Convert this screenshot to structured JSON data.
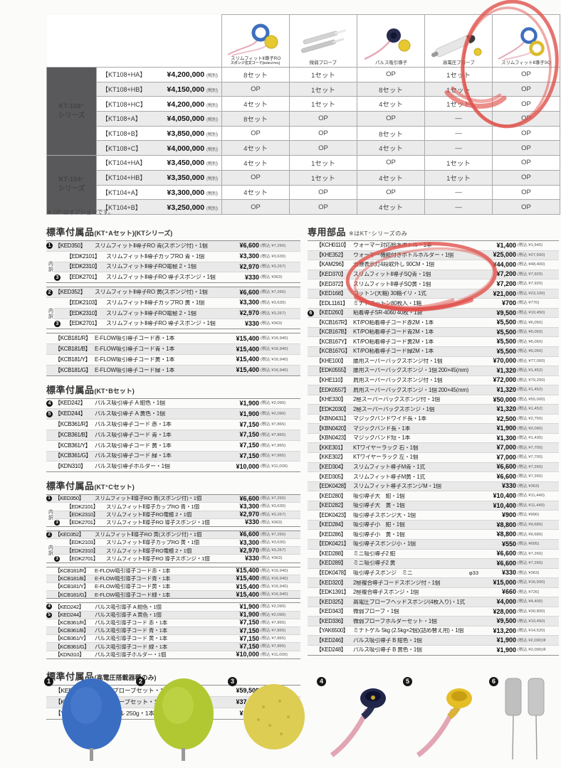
{
  "footnote": "※ OP はオプションです。",
  "top_table": {
    "tax_label": "(税別)",
    "columns": [
      {
        "label": "スリムフィットⅡ導子RO",
        "sublabel": "スポンジ注文コード[EDK2701]",
        "icon": "slimfit-ro-electrode"
      },
      {
        "label": "微弱プローブ",
        "sublabel": "",
        "icon": "weak-current-probe"
      },
      {
        "label": "パルス吸引導子",
        "sublabel": "",
        "icon": "pulse-suction-electrode"
      },
      {
        "label": "高電圧プローブ",
        "sublabel": "",
        "icon": "high-voltage-probe"
      },
      {
        "label": "スリムフィットⅡ導子SQ",
        "sublabel": "",
        "icon": "slimfit-sq-electrode"
      }
    ],
    "groups": [
      {
        "series": "KT-108⁺",
        "series_sub": "シリーズ",
        "rows": [
          {
            "model": "【KT108+HA】",
            "price": "¥4,200,000",
            "opts": [
              "8セット",
              "1セット",
              "OP",
              "1セット",
              "OP"
            ]
          },
          {
            "model": "【KT108+HB】",
            "price": "¥4,150,000",
            "opts": [
              "OP",
              "1セット",
              "8セット",
              "1セット",
              "OP"
            ]
          },
          {
            "model": "【KT108+HC】",
            "price": "¥4,200,000",
            "opts": [
              "4セット",
              "1セット",
              "4セット",
              "1セット",
              "OP"
            ]
          },
          {
            "model": "【KT108+A】",
            "price": "¥4,050,000",
            "opts": [
              "8セット",
              "OP",
              "OP",
              "—",
              "OP"
            ]
          },
          {
            "model": "【KT108+B】",
            "price": "¥3,850,000",
            "opts": [
              "OP",
              "OP",
              "8セット",
              "—",
              "OP"
            ]
          },
          {
            "model": "【KT108+C】",
            "price": "¥4,000,000",
            "opts": [
              "4セット",
              "OP",
              "4セット",
              "—",
              "OP"
            ]
          }
        ]
      },
      {
        "series": "KT-104⁺",
        "series_sub": "シリーズ",
        "rows": [
          {
            "model": "【KT104+HA】",
            "price": "¥3,450,000",
            "opts": [
              "4セット",
              "1セット",
              "OP",
              "1セット",
              "OP"
            ]
          },
          {
            "model": "【KT104+HB】",
            "price": "¥3,350,000",
            "opts": [
              "OP",
              "1セット",
              "4セット",
              "1セット",
              "OP"
            ]
          },
          {
            "model": "【KT104+A】",
            "price": "¥3,300,000",
            "opts": [
              "4セット",
              "OP",
              "OP",
              "—",
              "OP"
            ]
          },
          {
            "model": "【KT104+B】",
            "price": "¥3,250,000",
            "opts": [
              "OP",
              "OP",
              "4セット",
              "—",
              "OP"
            ]
          }
        ]
      }
    ]
  },
  "left_sections": [
    {
      "id": "kta",
      "density": "mid",
      "title": "標準付属品",
      "title_sub": "(KT⁺Aセット)(KTシリーズ)",
      "blocks": [
        {
          "main": {
            "badge": "1",
            "code": "【KED350】",
            "desc": "スリムフィットⅡ導子RO 青(スポンジ付)・1個",
            "price": "¥6,600",
            "tax": "(税込 ¥7,260)"
          },
          "sub_label": "内訳",
          "sub_rows": [
            {
              "code": "【EDK2101】",
              "desc": "スリムフィットⅡ導子カップRO 青・1個",
              "price": "¥3,300",
              "tax": "(税込 ¥3,630)"
            },
            {
              "code": "【EDK2310】",
              "desc": "スリムフィットⅡ導子RO電極 2・1個",
              "price": "¥2,970",
              "tax": "(税込 ¥3,267)"
            },
            {
              "badge": "3",
              "code": "【EDK2701】",
              "desc": "スリムフィットⅡ導子RO 導子スポンジ・1個",
              "price": "¥330",
              "tax": "(税込 ¥363)"
            }
          ]
        },
        {
          "main": {
            "badge": "2",
            "code": "【KED352】",
            "desc": "スリムフィットⅡ導子RO 黄(スポンジ付)・1個",
            "price": "¥6,600",
            "tax": "(税込 ¥7,260)"
          },
          "sub_label": "内訳",
          "sub_rows": [
            {
              "code": "【EDK2103】",
              "desc": "スリムフィットⅡ導子カップRO 黄・1個",
              "price": "¥3,300",
              "tax": "(税込 ¥3,630)"
            },
            {
              "code": "【EDK2310】",
              "desc": "スリムフィットⅡ導子RO電極 2・1個",
              "price": "¥2,970",
              "tax": "(税込 ¥3,267)"
            },
            {
              "badge": "3",
              "code": "【EDK2701】",
              "desc": "スリムフィットⅡ導子RO 導子スポンジ・1個",
              "price": "¥330",
              "tax": "(税込 ¥363)"
            }
          ]
        },
        {
          "rows": [
            {
              "code": "【KCB181/R】",
              "desc": "E-FLOW吸引導子コード赤・1本",
              "price": "¥15,400",
              "tax": "(税込 ¥16,940)"
            },
            {
              "code": "【KCB181/B】",
              "desc": "E-FLOW吸引導子コード青・1本",
              "price": "¥15,400",
              "tax": "(税込 ¥16,940)"
            },
            {
              "code": "【KCB181/Y】",
              "desc": "E-FLOW吸引導子コード黄・1本",
              "price": "¥15,400",
              "tax": "(税込 ¥16,940)"
            },
            {
              "code": "【KCB181/G】",
              "desc": "E-FLOW吸引導子コード緑・1本",
              "price": "¥15,400",
              "tax": "(税込 ¥16,940)"
            }
          ]
        }
      ]
    },
    {
      "id": "ktb",
      "density": "mid",
      "title": "標準付属品",
      "title_sub": "(KT⁺Bセット)",
      "blocks": [
        {
          "rows": [
            {
              "badge": "4",
              "code": "【KED242】",
              "desc": "パルス吸引導子 A 紺色・1個",
              "price": "¥1,900",
              "tax": "(税込 ¥2,090)"
            },
            {
              "badge": "5",
              "code": "【KED244】",
              "desc": "パルス吸引導子 A 黄色・1個",
              "price": "¥1,900",
              "tax": "(税込 ¥2,090)"
            },
            {
              "code": "【KCB361/R】",
              "desc": "パルス吸引導子コード 赤・1本",
              "price": "¥7,150",
              "tax": "(税込 ¥7,865)"
            },
            {
              "code": "【KCB361/B】",
              "desc": "パルス吸引導子コード 青・1本",
              "price": "¥7,150",
              "tax": "(税込 ¥7,865)"
            },
            {
              "code": "【KCB361/Y】",
              "desc": "パルス吸引導子コード 黄・1本",
              "price": "¥7,150",
              "tax": "(税込 ¥7,865)"
            },
            {
              "code": "【KCB361/G】",
              "desc": "パルス吸引導子コード 緑・1本",
              "price": "¥7,150",
              "tax": "(税込 ¥7,865)"
            },
            {
              "code": "【KDN310】",
              "desc": "パルス吸引導子ホルダー・1個",
              "price": "¥10,000",
              "tax": "(税込 ¥11,000)"
            }
          ]
        }
      ]
    },
    {
      "id": "ktc",
      "density": "dense",
      "title": "標準付属品",
      "title_sub": "(KT⁺Cセット)",
      "blocks": [
        {
          "main": {
            "badge": "1",
            "code": "【KED350】",
            "desc": "スリムフィットⅡ導子RO 青(スポンジ付)・1個",
            "price": "¥6,600",
            "tax": "(税込 ¥7,260)"
          },
          "sub_label": "内訳",
          "sub_rows": [
            {
              "code": "【EDK2101】",
              "desc": "スリムフィットⅡ導子カップRO 青・1個",
              "price": "¥3,300",
              "tax": "(税込 ¥3,630)"
            },
            {
              "code": "【EDK2310】",
              "desc": "スリムフィットⅡ導子RO電極 2・1個",
              "price": "¥2,970",
              "tax": "(税込 ¥3,267)"
            },
            {
              "badge": "3",
              "code": "【EDK2701】",
              "desc": "スリムフィットⅡ導子RO 導子スポンジ・1個",
              "price": "¥330",
              "tax": "(税込 ¥363)"
            }
          ]
        },
        {
          "main": {
            "badge": "2",
            "code": "【KED352】",
            "desc": "スリムフィットⅡ導子RO 黄(スポンジ付)・1個",
            "price": "¥6,600",
            "tax": "(税込 ¥7,260)"
          },
          "sub_label": "内訳",
          "sub_rows": [
            {
              "code": "【EDK2103】",
              "desc": "スリムフィットⅡ導子カップRO 黄・1個",
              "price": "¥3,300",
              "tax": "(税込 ¥3,630)"
            },
            {
              "code": "【EDK2310】",
              "desc": "スリムフィットⅡ導子RO電極 2・1個",
              "price": "¥2,970",
              "tax": "(税込 ¥3,267)"
            },
            {
              "badge": "3",
              "code": "【EDK2701】",
              "desc": "スリムフィットⅡ導子RO 導子スポンジ・1個",
              "price": "¥330",
              "tax": "(税込 ¥363)"
            }
          ]
        },
        {
          "rows": [
            {
              "code": "【KCB181/R】",
              "desc": "E-FLOW吸引導子コード赤・1本",
              "price": "¥15,400",
              "tax": "(税込 ¥16,940)"
            },
            {
              "code": "【KCB181/B】",
              "desc": "E-FLOW吸引導子コード青・1本",
              "price": "¥15,400",
              "tax": "(税込 ¥16,940)"
            },
            {
              "code": "【KCB181/Y】",
              "desc": "E-FLOW吸引導子コード黄・1本",
              "price": "¥15,400",
              "tax": "(税込 ¥16,940)"
            },
            {
              "code": "【KCB181/G】",
              "desc": "E-FLOW吸引導子コード緑・1本",
              "price": "¥15,400",
              "tax": "(税込 ¥16,940)"
            }
          ]
        },
        {
          "rows": [
            {
              "badge": "4",
              "code": "【KED242】",
              "desc": "パルス吸引導子 A 紺色・1個",
              "price": "¥1,900",
              "tax": "(税込 ¥2,090)"
            },
            {
              "badge": "5",
              "code": "【KED244】",
              "desc": "パルス吸引導子 A 黄色・1個",
              "price": "¥1,900",
              "tax": "(税込 ¥2,090)"
            },
            {
              "code": "【KCB361/R】",
              "desc": "パルス吸引導子コード 赤・1本",
              "price": "¥7,150",
              "tax": "(税込 ¥7,865)"
            },
            {
              "code": "【KCB361/B】",
              "desc": "パルス吸引導子コード 青・1本",
              "price": "¥7,150",
              "tax": "(税込 ¥7,865)"
            },
            {
              "code": "【KCB361/Y】",
              "desc": "パルス吸引導子コード 黄・1本",
              "price": "¥7,150",
              "tax": "(税込 ¥7,865)"
            },
            {
              "code": "【KCB361/G】",
              "desc": "パルス吸引導子コード 緑・1本",
              "price": "¥7,150",
              "tax": "(税込 ¥7,865)"
            },
            {
              "code": "【KDN310】",
              "desc": "パルス吸引導子ホルダー・1個",
              "price": "¥10,000",
              "tax": "(税込 ¥11,000)"
            }
          ]
        }
      ]
    },
    {
      "id": "hv",
      "density": "tall",
      "title": "標準付属品",
      "title_sub": "(高電圧搭載器種のみ)",
      "blocks": [
        {
          "rows": [
            {
              "code": "【KED332】",
              "desc": "高電圧プローブセット・1式",
              "price": "¥59,500",
              "tax": "(税込 ¥65,450)"
            },
            {
              "code": "【KED341】",
              "desc": "微弱プローブセット・1式",
              "price": "¥37,750",
              "tax": "(税込 ¥41,525)"
            },
            {
              "code": "【YAK6025】",
              "desc": "ミナトゲル 250g・1本",
              "price": "¥1,320",
              "tax": "(税込 ¥1,452)"
            }
          ]
        }
      ]
    }
  ],
  "right_section": {
    "title": "専用部品",
    "title_note": "※はKT⁺シリーズのみ",
    "rows": [
      {
        "code": "【KCH0110】",
        "desc": "ウォーマー対応給水ボトル・1本",
        "price": "¥1,400",
        "tax": "(税込 ¥1,540)"
      },
      {
        "code": "【KHE352】",
        "desc": "ウォーマー機能付きボトルホルダー・1個",
        "price": "¥25,000",
        "tax": "(税込 ¥27,500)"
      },
      {
        "code": "【KAM296】",
        "desc": "治療表示灯4段取外し 90CM・1個",
        "price": "¥44,000",
        "tax": "(税込 ¥48,400)"
      },
      {
        "code": "【KED370】",
        "desc": "スリムフィットⅡ導子SQ青・1個",
        "price": "¥7,200",
        "tax": "(税込 ¥7,920)"
      },
      {
        "code": "【KED372】",
        "desc": "スリムフィットⅡ導子SQ黄・1個",
        "price": "¥7,200",
        "tax": "(税込 ¥7,920)"
      },
      {
        "code": "【KED168】",
        "desc": "コットン(大箱) 30箱イリ・1式",
        "price": "¥21,000",
        "tax": "(税込 ¥23,100)"
      },
      {
        "code": "【EDL1161】",
        "desc": "ミナトコットン80枚入・1箱",
        "price": "¥700",
        "tax": "(税込 ¥770)"
      },
      {
        "badge": "6",
        "code": "【KED260】",
        "desc": "粘着導子SR-4060 40枚・1袋",
        "price": "¥9,500",
        "tax": "(税込 ¥10,450)"
      },
      {
        "code": "【KCB167R】",
        "desc": "KT/PO粘着導子コード赤2M・1本",
        "price": "¥5,500",
        "tax": "(税込 ¥6,050)"
      },
      {
        "code": "【KCB167B】",
        "desc": "KT/PO粘着導子コード青2M・1本",
        "price": "¥5,500",
        "tax": "(税込 ¥6,050)"
      },
      {
        "code": "【KCB167Y】",
        "desc": "KT/PO粘着導子コード黄2M・1本",
        "price": "¥5,500",
        "tax": "(税込 ¥6,050)"
      },
      {
        "code": "【KCB167G】",
        "desc": "KT/PO粘着導子コード緑2M・1本",
        "price": "¥5,500",
        "tax": "(税込 ¥6,050)"
      },
      {
        "code": "【KHE100】",
        "desc": "腰用スーパーバックスポンジ付・1個",
        "price": "¥70,000",
        "tax": "(税込 ¥77,000)"
      },
      {
        "code": "【EDK0555】",
        "desc": "腰用スーパーバックスポンジ・1個 200×45(mm)",
        "price": "¥1,320",
        "tax": "(税込 ¥1,452)"
      },
      {
        "code": "【KHE110】",
        "desc": "肩用スーパーバックスポンジ付・1個",
        "price": "¥72,000",
        "tax": "(税込 ¥79,200)"
      },
      {
        "code": "【EDK0557】",
        "desc": "肩用スーパーバックスポンジ・1個 200×45(mm)",
        "price": "¥1,320",
        "tax": "(税込 ¥1,452)"
      },
      {
        "code": "【KHE330】",
        "desc": "2極スーパーバックスポンジ付・1個",
        "price": "¥50,000",
        "tax": "(税込 ¥55,000)"
      },
      {
        "code": "【EDK2030】",
        "desc": "2極スーパーバックスポンジ・1個",
        "price": "¥1,320",
        "tax": "(税込 ¥1,452)"
      },
      {
        "code": "【KBN0431】",
        "desc": "マジックバンドワイド長・1本",
        "price": "¥2,500",
        "tax": "(税込 ¥2,750)"
      },
      {
        "code": "【KBN0420】",
        "desc": "マジックバンド長・1本",
        "price": "¥1,900",
        "tax": "(税込 ¥2,090)"
      },
      {
        "code": "【KBN0423】",
        "desc": "マジックバンド短・1本",
        "price": "¥1,300",
        "tax": "(税込 ¥1,430)"
      },
      {
        "code": "【KKE301】",
        "desc": "KTワイヤーラック 右・1個",
        "price": "¥7,000",
        "tax": "(税込 ¥7,700)"
      },
      {
        "code": "【KKE302】",
        "desc": "KTワイヤーラック 左・1個",
        "price": "¥7,000",
        "tax": "(税込 ¥7,700)"
      },
      {
        "code": "【KED304】",
        "desc": "スリムフィット導子M青・1式",
        "price": "¥6,600",
        "tax": "(税込 ¥7,260)"
      },
      {
        "code": "【KED305】",
        "desc": "スリムフィット導子M黄・1式",
        "price": "¥6,600",
        "tax": "(税込 ¥7,260)"
      },
      {
        "code": "【EDK0428】",
        "desc": "スリムフィット導子スポンジM・1個",
        "price": "¥330",
        "tax": "(税込 ¥363)"
      },
      {
        "code": "【KED280】",
        "desc": "吸引導子大　紺・1個",
        "price": "¥10,400",
        "tax": "(税込 ¥11,440)"
      },
      {
        "code": "【KED282】",
        "desc": "吸引導子大　黄・1個",
        "price": "¥10,400",
        "tax": "(税込 ¥11,440)"
      },
      {
        "code": "【EDK0423】",
        "desc": "吸引導子スポンジ大・1個",
        "price": "¥900",
        "tax": "(税込 ¥990)"
      },
      {
        "code": "【KED284】",
        "desc": "吸引導子小　紺・1個",
        "price": "¥8,800",
        "tax": "(税込 ¥9,680)"
      },
      {
        "code": "【KED286】",
        "desc": "吸引導子小　黄・1個",
        "price": "¥8,800",
        "tax": "(税込 ¥9,680)"
      },
      {
        "code": "【EDK0421】",
        "desc": "吸引導子スポンジ小・1個",
        "price": "¥550",
        "tax": "(税込 ¥605)"
      },
      {
        "code": "【KED288】",
        "desc": "ミニ吸引導子2 紺",
        "price": "¥6,600",
        "tax": "(税込 ¥7,260)"
      },
      {
        "code": "【KED289】",
        "desc": "ミニ吸引導子2 黄",
        "price": "¥6,600",
        "tax": "(税込 ¥7,260)"
      },
      {
        "code": "【EDK0478】",
        "desc": "吸引導子スポンジ　ミニ",
        "note": "φ33",
        "price": "¥330",
        "tax": "(税込 ¥363)"
      },
      {
        "code": "【KED320】",
        "desc": "2極複合導子コードスポンジ付・1個",
        "price": "¥15,000",
        "tax": "(税込 ¥16,500)"
      },
      {
        "code": "【EDK1391】",
        "desc": "2極複合導子スポンジ・1個",
        "price": "¥660",
        "tax": "(税込 ¥726)"
      },
      {
        "code": "【KED325】",
        "desc": "高電圧プローブヘッドスポンジ(4枚入り)・1式",
        "price": "¥4,000",
        "tax": "(税込 ¥4,400)"
      },
      {
        "code": "【KED343】",
        "desc": "微弱プローブ・1個",
        "price": "¥28,000",
        "tax": "(税込 ¥30,800)"
      },
      {
        "code": "【KED336】",
        "desc": "微弱プローブホルダーセット・1個",
        "price": "¥9,500",
        "tax": "(税込 ¥10,450)"
      },
      {
        "code": "【YAK6500】",
        "desc": "ミナトゲル 5kg (2.5kg×2個)(詰め替え用)・1個",
        "price": "¥13,200",
        "tax": "(税込 ¥14,520)"
      },
      {
        "code": "【KED246】",
        "desc": "パルス吸引導子 B 紺色・1個",
        "price": "¥1,900",
        "tax": "(税込 ¥2,090)※"
      },
      {
        "code": "【KED248】",
        "desc": "パルス吸引導子 B 黄色・1個",
        "price": "¥1,900",
        "tax": "(税込 ¥2,090)※"
      }
    ]
  },
  "gallery": [
    {
      "badge": "1",
      "icon": "blue-ro-electrode-photo"
    },
    {
      "badge": "2",
      "icon": "green-ro-electrode-photo"
    },
    {
      "badge": "3",
      "icon": "yellow-sponge-photo"
    },
    {
      "badge": "4",
      "icon": "navy-pulse-electrode-photo"
    },
    {
      "badge": "5",
      "icon": "yellow-pulse-electrode-photo"
    },
    {
      "badge": "6",
      "icon": "adhesive-pads-photo"
    }
  ],
  "colors": {
    "annotation_red": "#e0514b",
    "stripe": "#ebebeb",
    "series_cell": "#59595b"
  }
}
